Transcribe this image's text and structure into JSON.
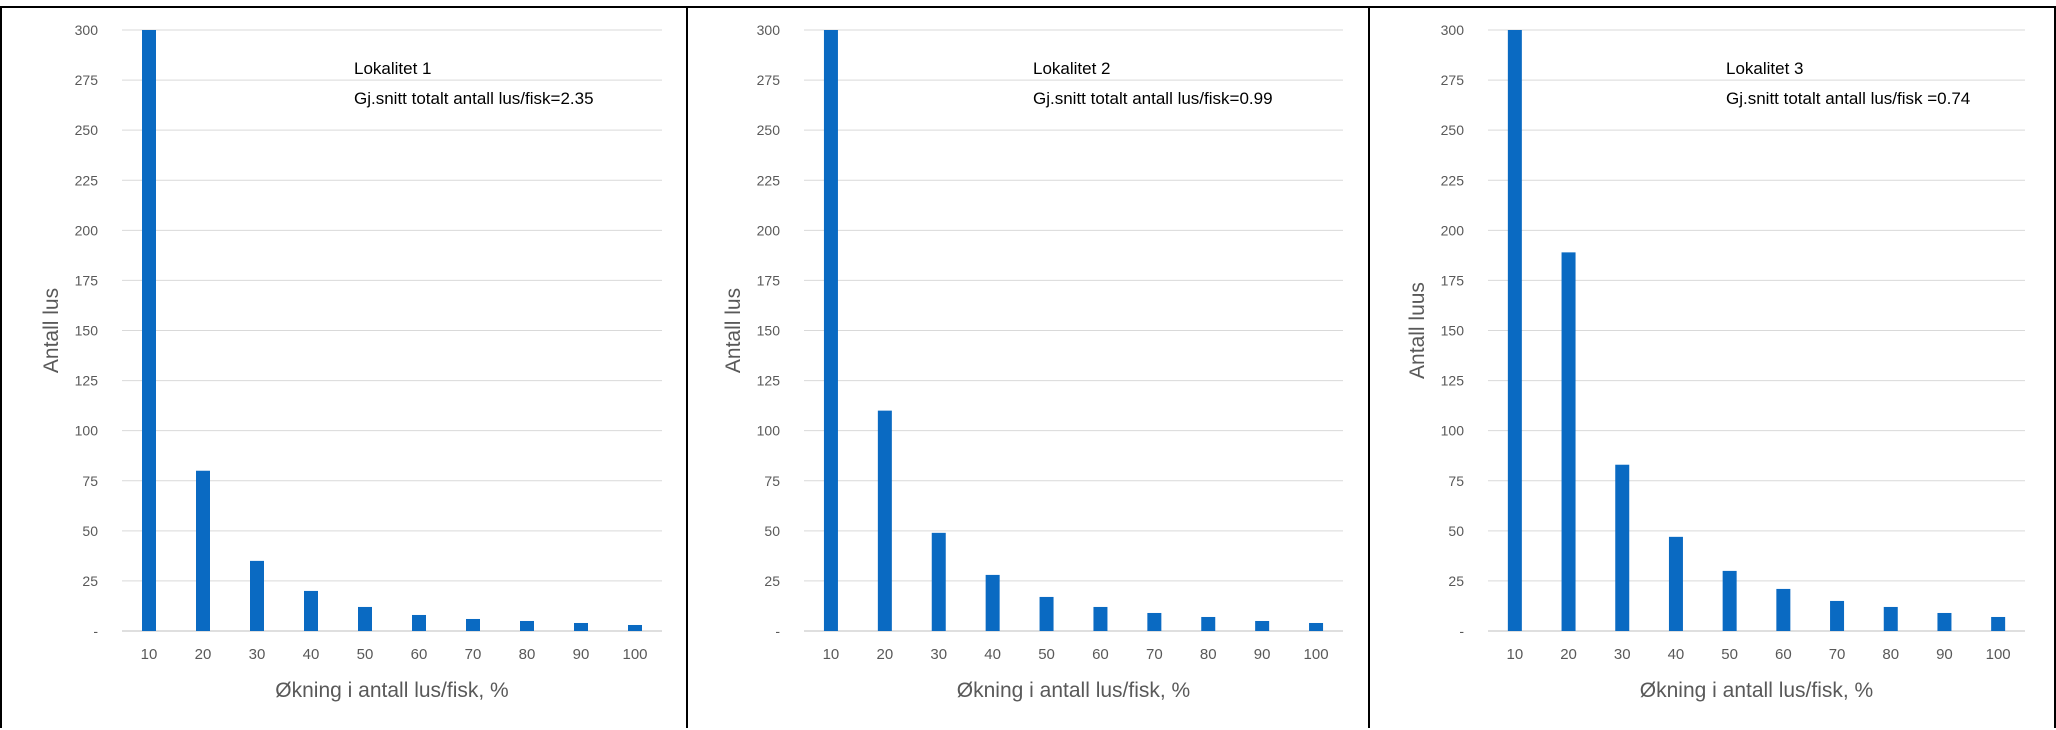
{
  "colors": {
    "bar": "#0a6ac2",
    "grid": "#d9d9d9",
    "axis": "#bfbfbf",
    "text": "#595959"
  },
  "chart_data": [
    {
      "type": "bar",
      "categories": [
        "10",
        "20",
        "30",
        "40",
        "50",
        "60",
        "70",
        "80",
        "90",
        "100"
      ],
      "values": [
        300,
        80,
        35,
        20,
        12,
        8,
        6,
        5,
        4,
        3
      ],
      "ylim": [
        0,
        300
      ],
      "yticks": [
        "-",
        "25",
        "50",
        "75",
        "100",
        "125",
        "150",
        "175",
        "200",
        "225",
        "250",
        "275",
        "300"
      ],
      "xlabel": "Økning i antall lus/fisk, %",
      "ylabel": "Antall lus",
      "annotation": [
        "Lokalitet 1",
        "Gj.snitt totalt antall lus/fisk=2.35"
      ],
      "grid": true,
      "legend": "none"
    },
    {
      "type": "bar",
      "categories": [
        "10",
        "20",
        "30",
        "40",
        "50",
        "60",
        "70",
        "80",
        "90",
        "100"
      ],
      "values": [
        300,
        110,
        49,
        28,
        17,
        12,
        9,
        7,
        5,
        4
      ],
      "ylim": [
        0,
        300
      ],
      "yticks": [
        "-",
        "25",
        "50",
        "75",
        "100",
        "125",
        "150",
        "175",
        "200",
        "225",
        "250",
        "275",
        "300"
      ],
      "xlabel": "Økning i antall lus/fisk, %",
      "ylabel": "Antall lus",
      "annotation": [
        "Lokalitet 2",
        "Gj.snitt totalt antall lus/fisk=0.99"
      ],
      "grid": true,
      "legend": "none"
    },
    {
      "type": "bar",
      "categories": [
        "10",
        "20",
        "30",
        "40",
        "50",
        "60",
        "70",
        "80",
        "90",
        "100"
      ],
      "values": [
        300,
        189,
        83,
        47,
        30,
        21,
        15,
        12,
        9,
        7
      ],
      "ylim": [
        0,
        300
      ],
      "yticks": [
        "-",
        "25",
        "50",
        "75",
        "100",
        "125",
        "150",
        "175",
        "200",
        "225",
        "250",
        "275",
        "300"
      ],
      "xlabel": "Økning i antall lus/fisk, %",
      "ylabel": "Antall luus",
      "annotation": [
        "Lokalitet 3",
        "Gj.snitt totalt antall lus/fisk =0.74"
      ],
      "grid": true,
      "legend": "none"
    }
  ]
}
